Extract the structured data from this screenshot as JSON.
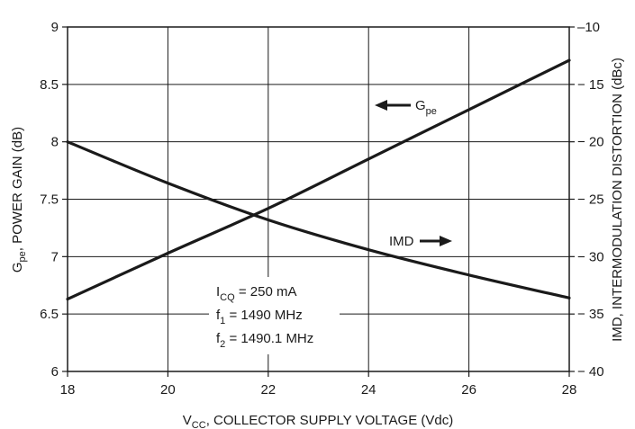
{
  "chart_data": {
    "type": "line",
    "x_axis": {
      "label_main": "V",
      "label_sub": "CC",
      "label_rest": ", COLLECTOR SUPPLY VOLTAGE (Vdc)",
      "range": [
        18,
        28
      ],
      "ticks": [
        "18",
        "20",
        "22",
        "24",
        "26",
        "28"
      ]
    },
    "y_axis_left": {
      "label_main": "G",
      "label_sub": "pe",
      "label_rest": ", POWER GAIN (dB)",
      "range": [
        6,
        9
      ],
      "ticks": [
        "6",
        "6.5",
        "7",
        "7.5",
        "8",
        "8.5",
        "9"
      ]
    },
    "y_axis_right": {
      "label": "IMD, INTERMODULATION DISTORTION (dBc)",
      "range": [
        -40,
        -10
      ],
      "ticks": [
        "− 40",
        "− 35",
        "− 30",
        "− 25",
        "− 20",
        "− 15",
        "–10"
      ]
    },
    "grid": true,
    "series": [
      {
        "name": "Gpe",
        "axis": "left",
        "x": [
          18,
          20,
          22,
          24,
          26,
          28
        ],
        "y": [
          6.63,
          7.03,
          7.42,
          7.85,
          8.28,
          8.71
        ]
      },
      {
        "name": "IMD",
        "axis": "right",
        "x": [
          18,
          20,
          22,
          24,
          26,
          28
        ],
        "y": [
          -20.0,
          -23.6,
          -26.8,
          -29.4,
          -31.6,
          -33.6
        ]
      }
    ],
    "annotations": {
      "gpe_label_main": "G",
      "gpe_label_sub": "pe",
      "imd_label": "IMD",
      "conditions": [
        {
          "main": "I",
          "sub": "CQ",
          "rest": " = 250 mA"
        },
        {
          "main": "f",
          "sub": "1",
          "rest": " = 1490 MHz"
        },
        {
          "main": "f",
          "sub": "2",
          "rest": " = 1490.1 MHz"
        }
      ]
    }
  }
}
